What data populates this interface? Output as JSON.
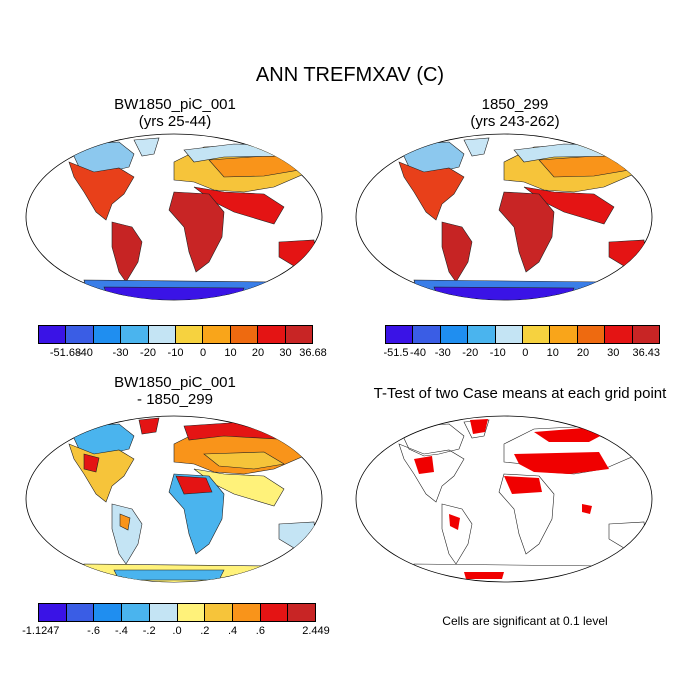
{
  "main_title": "ANN TREFMXAV (C)",
  "panels": [
    {
      "title_line1": "BW1850_piC_001",
      "title_line2": "(yrs 25-44)",
      "colorbar": {
        "colors": [
          "#3a13e6",
          "#3a5de5",
          "#1f8ef0",
          "#4ab4ee",
          "#c4e4f4",
          "#f6d23f",
          "#f9a51a",
          "#ee6a10",
          "#e41414",
          "#c82525"
        ],
        "ticks": [
          "-51.68",
          "-40",
          "-30",
          "-20",
          "-10",
          "0",
          "10",
          "20",
          "30",
          "36.68"
        ]
      }
    },
    {
      "title_line1": "1850_299",
      "title_line2": "(yrs 243-262)",
      "colorbar": {
        "colors": [
          "#3a13e6",
          "#3a5de5",
          "#1f8ef0",
          "#4ab4ee",
          "#c4e4f4",
          "#f6d23f",
          "#f9a51a",
          "#ee6a10",
          "#e41414",
          "#c82525"
        ],
        "ticks": [
          "-51.5",
          "-40",
          "-30",
          "-20",
          "-10",
          "0",
          "10",
          "20",
          "30",
          "36.43"
        ]
      }
    },
    {
      "title_line1": "BW1850_piC_001",
      "title_line2": "- 1850_299",
      "colorbar": {
        "colors": [
          "#3a13e6",
          "#3a5de5",
          "#1f8ef0",
          "#4ab4ee",
          "#c4e4f4",
          "#fff27a",
          "#f6c43a",
          "#f9941a",
          "#e41414",
          "#c82525"
        ],
        "ticks": [
          "-1.1247",
          "-.6",
          "-.4",
          "-.2",
          ".0",
          ".2",
          ".4",
          ".6",
          "",
          "2.449"
        ]
      }
    },
    {
      "title_line1": "T-Test of two Case means at each grid point",
      "title_line2": ""
    }
  ],
  "note": "Cells are significant at 0.1 level"
}
